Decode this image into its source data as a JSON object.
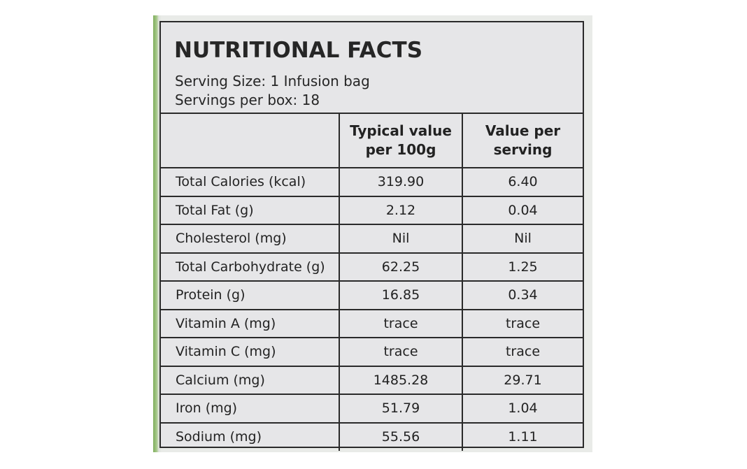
{
  "label": {
    "title": "NUTRITIONAL FACTS",
    "serving_size": "Serving Size: 1 Infusion bag",
    "servings_per_box": "Servings per box: 18",
    "columns": [
      "",
      "Typical value per 100g",
      "Value per serving"
    ],
    "rows": [
      {
        "nutrient": "Total Calories (kcal)",
        "per_100g": "319.90",
        "per_serving": "6.40"
      },
      {
        "nutrient": "Total Fat (g)",
        "per_100g": "2.12",
        "per_serving": "0.04"
      },
      {
        "nutrient": "Cholesterol (mg)",
        "per_100g": "Nil",
        "per_serving": "Nil"
      },
      {
        "nutrient": "Total Carbohydrate (g)",
        "per_100g": "62.25",
        "per_serving": "1.25"
      },
      {
        "nutrient": "Protein (g)",
        "per_100g": "16.85",
        "per_serving": "0.34"
      },
      {
        "nutrient": "Vitamin A (mg)",
        "per_100g": "trace",
        "per_serving": "trace"
      },
      {
        "nutrient": "Vitamin C (mg)",
        "per_100g": "trace",
        "per_serving": "trace"
      },
      {
        "nutrient": "Calcium (mg)",
        "per_100g": "1485.28",
        "per_serving": "29.71"
      },
      {
        "nutrient": "Iron (mg)",
        "per_100g": "51.79",
        "per_serving": "1.04"
      },
      {
        "nutrient": "Sodium (mg)",
        "per_100g": "55.56",
        "per_serving": "1.11"
      }
    ]
  },
  "colors": {
    "panel_background": "#e6e6e8",
    "border": "#2a2a2a",
    "text": "#222222",
    "packaging_green": "#7fae5c"
  }
}
